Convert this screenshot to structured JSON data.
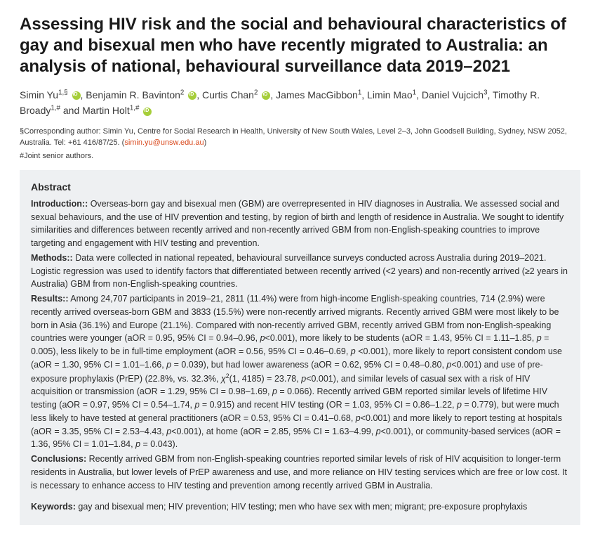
{
  "title": "Assessing HIV risk and the social and behavioural characteristics of gay and bisexual men who have recently migrated to Australia: an analysis of national, behavioural surveillance data 2019–2021",
  "authors_html": "Simin Yu<sup>1,§</sup> <span class='orcid'></span>, Benjamin R. Bavinton<sup>2</sup> <span class='orcid'></span>, Curtis Chan<sup>2</sup> <span class='orcid'></span>, James MacGibbon<sup>1</sup>, Limin Mao<sup>1</sup>, Daniel Vujcich<sup>3</sup>, Timothy R. Broady<sup>1,#</sup> and Martin Holt<sup>1,#</sup> <span class='orcid'></span>",
  "corresponding_prefix": "§Corresponding author: Simin Yu, Centre for Social Research in Health, University of New South Wales, Level 2–3, John Goodsell Building, Sydney, NSW 2052, Australia. Tel: +61 416/87/25. (",
  "corresponding_email": "simin.yu@unsw.edu.au",
  "corresponding_suffix": ")",
  "joint": "#Joint senior authors.",
  "abstract_heading": "Abstract",
  "intro_label": "Introduction::",
  "intro_text": " Overseas-born gay and bisexual men (GBM) are overrepresented in HIV diagnoses in Australia. We assessed social and sexual behaviours, and the use of HIV prevention and testing, by region of birth and length of residence in Australia. We sought to identify similarities and differences between recently arrived and non-recently arrived GBM from non-English-speaking countries to improve targeting and engagement with HIV testing and prevention.",
  "methods_label": "Methods::",
  "methods_text": " Data were collected in national repeated, behavioural surveillance surveys conducted across Australia during 2019–2021. Logistic regression was used to identify factors that differentiated between recently arrived (<2 years) and non-recently arrived (≥2 years in Australia) GBM from non-English-speaking countries.",
  "results_label": "Results::",
  "results_text_html": " Among 24,707 participants in 2019–21, 2811 (11.4%) were from high-income English-speaking countries, 714 (2.9%) were recently arrived overseas-born GBM and 3833 (15.5%) were non-recently arrived migrants. Recently arrived GBM were most likely to be born in Asia (36.1%) and Europe (21.1%). Compared with non-recently arrived GBM, recently arrived GBM from non-English-speaking countries were younger (aOR = 0.95, 95% CI = 0.94–0.96, <span class='ital'>p</span><0.001), more likely to be students (aOR = 1.43, 95% CI = 1.11–1.85, <span class='ital'>p</span> = 0.005), less likely to be in full-time employment (aOR = 0.56, 95% CI = 0.46–0.69, <span class='ital'>p</span> <0.001), more likely to report consistent condom use (aOR = 1.30, 95% CI = 1.01–1.66, <span class='ital'>p</span> = 0.039), but had lower awareness (aOR = 0.62, 95% CI = 0.48–0.80, <span class='ital'>p</span><0.001) and use of pre-exposure prophylaxis (PrEP) (22.8%, vs. 32.3%, <span class='ital'>χ</span><sup>2</sup>(1, 4185) = 23.78, <span class='ital'>p</span><0.001), and similar levels of casual sex with a risk of HIV acquisition or transmission (aOR = 1.29, 95% CI = 0.98–1.69, <span class='ital'>p</span> = 0.066). Recently arrived GBM reported similar levels of lifetime HIV testing (aOR = 0.97, 95% CI = 0.54–1.74, <span class='ital'>p</span> = 0.915) and recent HIV testing (OR = 1.03, 95% CI = 0.86–1.22, <span class='ital'>p</span> = 0.779), but were much less likely to have tested at general practitioners (aOR = 0.53, 95% CI = 0.41–0.68, <span class='ital'>p</span><0.001) and more likely to report testing at hospitals (aOR = 3.35, 95% CI = 2.53–4.43, <span class='ital'>p</span><0.001), at home (aOR = 2.85, 95% CI = 1.63–4.99, <span class='ital'>p</span><0.001), or community-based services (aOR = 1.36, 95% CI = 1.01–1.84, <span class='ital'>p</span> = 0.043).",
  "conclusions_label": "Conclusions:",
  "conclusions_text": " Recently arrived GBM from non-English-speaking countries reported similar levels of risk of HIV acquisition to longer-term residents in Australia, but lower levels of PrEP awareness and use, and more reliance on HIV testing services which are free or low cost. It is necessary to enhance access to HIV testing and prevention among recently arrived GBM in Australia.",
  "keywords_label": "Keywords:",
  "keywords_text": " gay and bisexual men; HIV prevention; HIV testing; men who have sex with men; migrant; pre-exposure prophylaxis",
  "colors": {
    "abstract_bg": "#eef0f2",
    "link": "#d9481c",
    "orcid": "#a6ce39",
    "text": "#1a1a1a"
  },
  "typography": {
    "title_fontsize": 24,
    "title_weight": 700,
    "authors_fontsize": 14,
    "corresponding_fontsize": 11,
    "abstract_fontsize": 12.5,
    "abstract_heading_fontsize": 14
  }
}
